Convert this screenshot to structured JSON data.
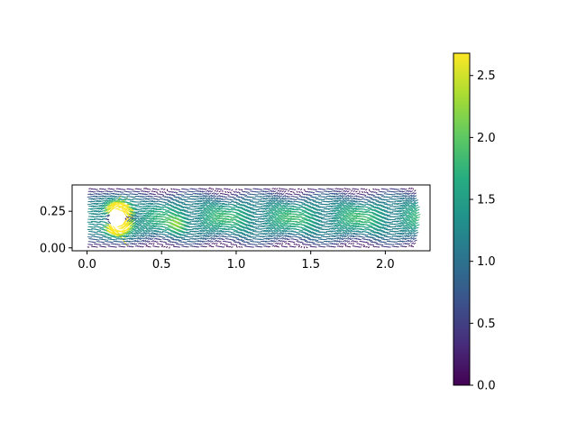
{
  "chart_data": {
    "type": "quiver",
    "title": "",
    "xlabel": "",
    "ylabel": "",
    "xlim": [
      -0.1,
      2.3
    ],
    "ylim": [
      -0.02,
      0.43
    ],
    "aspect": "equal",
    "grid": false,
    "domain": {
      "x": [
        0.0,
        2.2
      ],
      "y": [
        0.0,
        0.41
      ]
    },
    "obstacle": {
      "shape": "circle",
      "center": [
        0.2,
        0.2
      ],
      "radius": 0.05
    },
    "vector_field": {
      "description": "velocity magnitude field of flow past a cylinder with a von Karman vortex street",
      "inflow_max_speed": 1.5,
      "max_speed": 2.6,
      "wake_wavelength": 0.45,
      "wake_amplitude": 0.05
    },
    "xticks": [
      0.0,
      0.5,
      1.0,
      1.5,
      2.0
    ],
    "xtick_labels": [
      "0.0",
      "0.5",
      "1.0",
      "1.5",
      "2.0"
    ],
    "yticks": [
      0.0,
      0.25
    ],
    "ytick_labels": [
      "0.00",
      "0.25"
    ],
    "colorbar": {
      "colormap": "viridis",
      "range": [
        0.0,
        2.68
      ],
      "ticks": [
        0.0,
        0.5,
        1.0,
        1.5,
        2.0,
        2.5
      ],
      "tick_labels": [
        "0.0",
        "0.5",
        "1.0",
        "1.5",
        "2.0",
        "2.5"
      ],
      "position": "right"
    }
  }
}
